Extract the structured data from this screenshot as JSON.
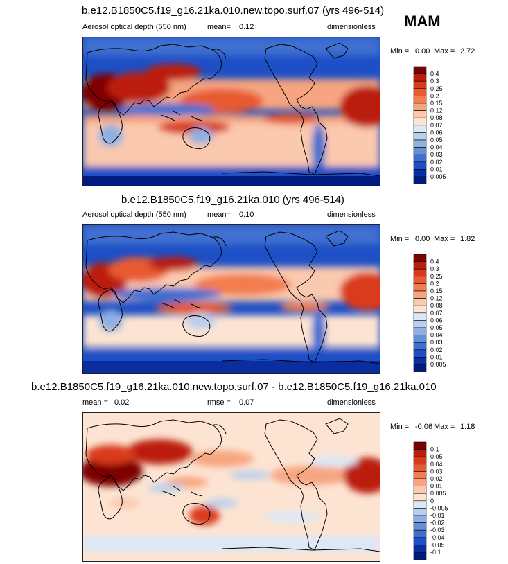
{
  "season_label": "MAM",
  "chart_data": [
    {
      "type": "heatmap",
      "title": "b.e12.B1850C5.f19_g16.21ka.010.new.topo.surf.07 (yrs 496-514)",
      "left_label": "Aerosol optical depth (550 nm)",
      "center_label": "mean=",
      "center_value": "0.12",
      "right_label": "dimensionless",
      "stats": {
        "min_label": "Min =",
        "min": "0.00",
        "max_label": "Max =",
        "max": "2.72"
      },
      "levels": [
        "0.4",
        "0.3",
        "0.25",
        "0.2",
        "0.15",
        "0.12",
        "0.08",
        "0.07",
        "0.06",
        "0.05",
        "0.04",
        "0.03",
        "0.02",
        "0.01",
        "0.005"
      ],
      "colors": [
        "#7f0000",
        "#bb1e0c",
        "#d93a1a",
        "#e85a30",
        "#f27d50",
        "#f7a580",
        "#fbc9ae",
        "#fde4d2",
        "#dbe8f6",
        "#b8cfee",
        "#8eb0e2",
        "#6590d8",
        "#3f6fd0",
        "#1d4fc6",
        "#0a2ea0",
        "#001a80"
      ]
    },
    {
      "type": "heatmap",
      "title": "b.e12.B1850C5.f19_g16.21ka.010 (yrs 496-514)",
      "left_label": "Aerosol optical depth (550 nm)",
      "center_label": "mean=",
      "center_value": "0.10",
      "right_label": "dimensionless",
      "stats": {
        "min_label": "Min =",
        "min": "0.00",
        "max_label": "Max =",
        "max": "1.82"
      },
      "levels": [
        "0.4",
        "0.3",
        "0.25",
        "0.2",
        "0.15",
        "0.12",
        "0.08",
        "0.07",
        "0.06",
        "0.05",
        "0.04",
        "0.03",
        "0.02",
        "0.01",
        "0.005"
      ],
      "colors": [
        "#7f0000",
        "#bb1e0c",
        "#d93a1a",
        "#e85a30",
        "#f27d50",
        "#f7a580",
        "#fbc9ae",
        "#fde4d2",
        "#dbe8f6",
        "#b8cfee",
        "#8eb0e2",
        "#6590d8",
        "#3f6fd0",
        "#1d4fc6",
        "#0a2ea0",
        "#001a80"
      ]
    },
    {
      "type": "heatmap",
      "title": "b.e12.B1850C5.f19_g16.21ka.010.new.topo.surf.07 - b.e12.B1850C5.f19_g16.21ka.010",
      "left_label": "mean =",
      "left_value": "0.02",
      "center_label": "rmse =",
      "center_value": "0.07",
      "right_label": "dimensionless",
      "stats": {
        "min_label": "Min =",
        "min": "-0.06",
        "max_label": "Max =",
        "max": "1.18"
      },
      "levels": [
        "0.1",
        "0.05",
        "0.04",
        "0.03",
        "0.02",
        "0.01",
        "0.005",
        "0",
        "-0.005",
        "-0.01",
        "-0.02",
        "-0.03",
        "-0.04",
        "-0.05",
        "-0.1"
      ],
      "colors": [
        "#7f0000",
        "#bb1e0c",
        "#d93a1a",
        "#e85a30",
        "#f27d50",
        "#f7a580",
        "#fbc9ae",
        "#fde4d2",
        "#dbe8f6",
        "#b8cfee",
        "#8eb0e2",
        "#6590d8",
        "#3f6fd0",
        "#1d4fc6",
        "#0a2ea0",
        "#001a80"
      ]
    }
  ]
}
